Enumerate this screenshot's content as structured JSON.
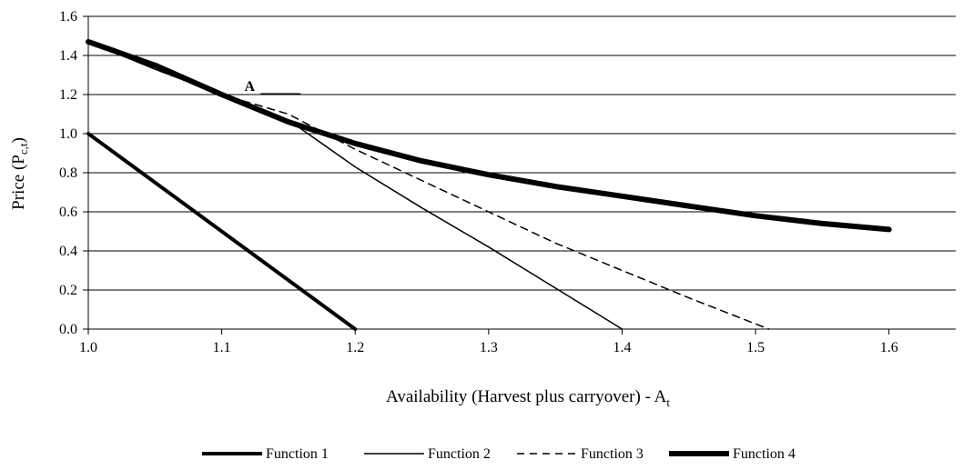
{
  "chart_data": {
    "type": "line",
    "xlabel_main": "Availability (Harvest plus carryover) - A",
    "xlabel_sub": "t",
    "ylabel_main": "Price (P",
    "ylabel_sub": "c,t",
    "ylabel_close": ")",
    "xlim": [
      1.0,
      1.65
    ],
    "ylim": [
      0.0,
      1.6
    ],
    "x_ticks": [
      1.0,
      1.1,
      1.2,
      1.3,
      1.4,
      1.5,
      1.6
    ],
    "x_tick_labels": [
      "1.0",
      "1.1",
      "1.2",
      "1.3",
      "1.4",
      "1.5",
      "1.6"
    ],
    "y_ticks": [
      0.0,
      0.2,
      0.4,
      0.6,
      0.8,
      1.0,
      1.2,
      1.4,
      1.6
    ],
    "y_tick_labels": [
      "0.0",
      "0.2",
      "0.4",
      "0.6",
      "0.8",
      "1.0",
      "1.2",
      "1.4",
      "1.6"
    ],
    "grid": "horizontal",
    "legend_position": "bottom",
    "annotation": {
      "text": "A",
      "x": 1.11,
      "y": 1.2
    },
    "series": [
      {
        "name": "Function 1",
        "style": "thick",
        "color": "#000000",
        "points": [
          [
            1.0,
            1.0
          ],
          [
            1.2,
            0.0
          ]
        ]
      },
      {
        "name": "Function 2",
        "style": "thin",
        "color": "#000000",
        "points": [
          [
            1.0,
            1.47
          ],
          [
            1.05,
            1.33
          ],
          [
            1.1,
            1.2
          ],
          [
            1.15,
            1.07
          ],
          [
            1.2,
            0.83
          ],
          [
            1.25,
            0.62
          ],
          [
            1.3,
            0.42
          ],
          [
            1.35,
            0.21
          ],
          [
            1.4,
            0.0
          ]
        ]
      },
      {
        "name": "Function 3",
        "style": "dashed",
        "color": "#000000",
        "points": [
          [
            1.0,
            1.47
          ],
          [
            1.05,
            1.33
          ],
          [
            1.1,
            1.2
          ],
          [
            1.15,
            1.1
          ],
          [
            1.2,
            0.92
          ],
          [
            1.25,
            0.76
          ],
          [
            1.3,
            0.6
          ],
          [
            1.35,
            0.44
          ],
          [
            1.4,
            0.3
          ],
          [
            1.45,
            0.16
          ],
          [
            1.51,
            0.0
          ]
        ]
      },
      {
        "name": "Function 4",
        "style": "extra-thick",
        "color": "#000000",
        "points": [
          [
            1.0,
            1.47
          ],
          [
            1.05,
            1.35
          ],
          [
            1.1,
            1.2
          ],
          [
            1.15,
            1.06
          ],
          [
            1.2,
            0.95
          ],
          [
            1.25,
            0.86
          ],
          [
            1.3,
            0.79
          ],
          [
            1.35,
            0.73
          ],
          [
            1.4,
            0.68
          ],
          [
            1.45,
            0.63
          ],
          [
            1.5,
            0.58
          ],
          [
            1.55,
            0.54
          ],
          [
            1.6,
            0.51
          ]
        ]
      }
    ]
  }
}
